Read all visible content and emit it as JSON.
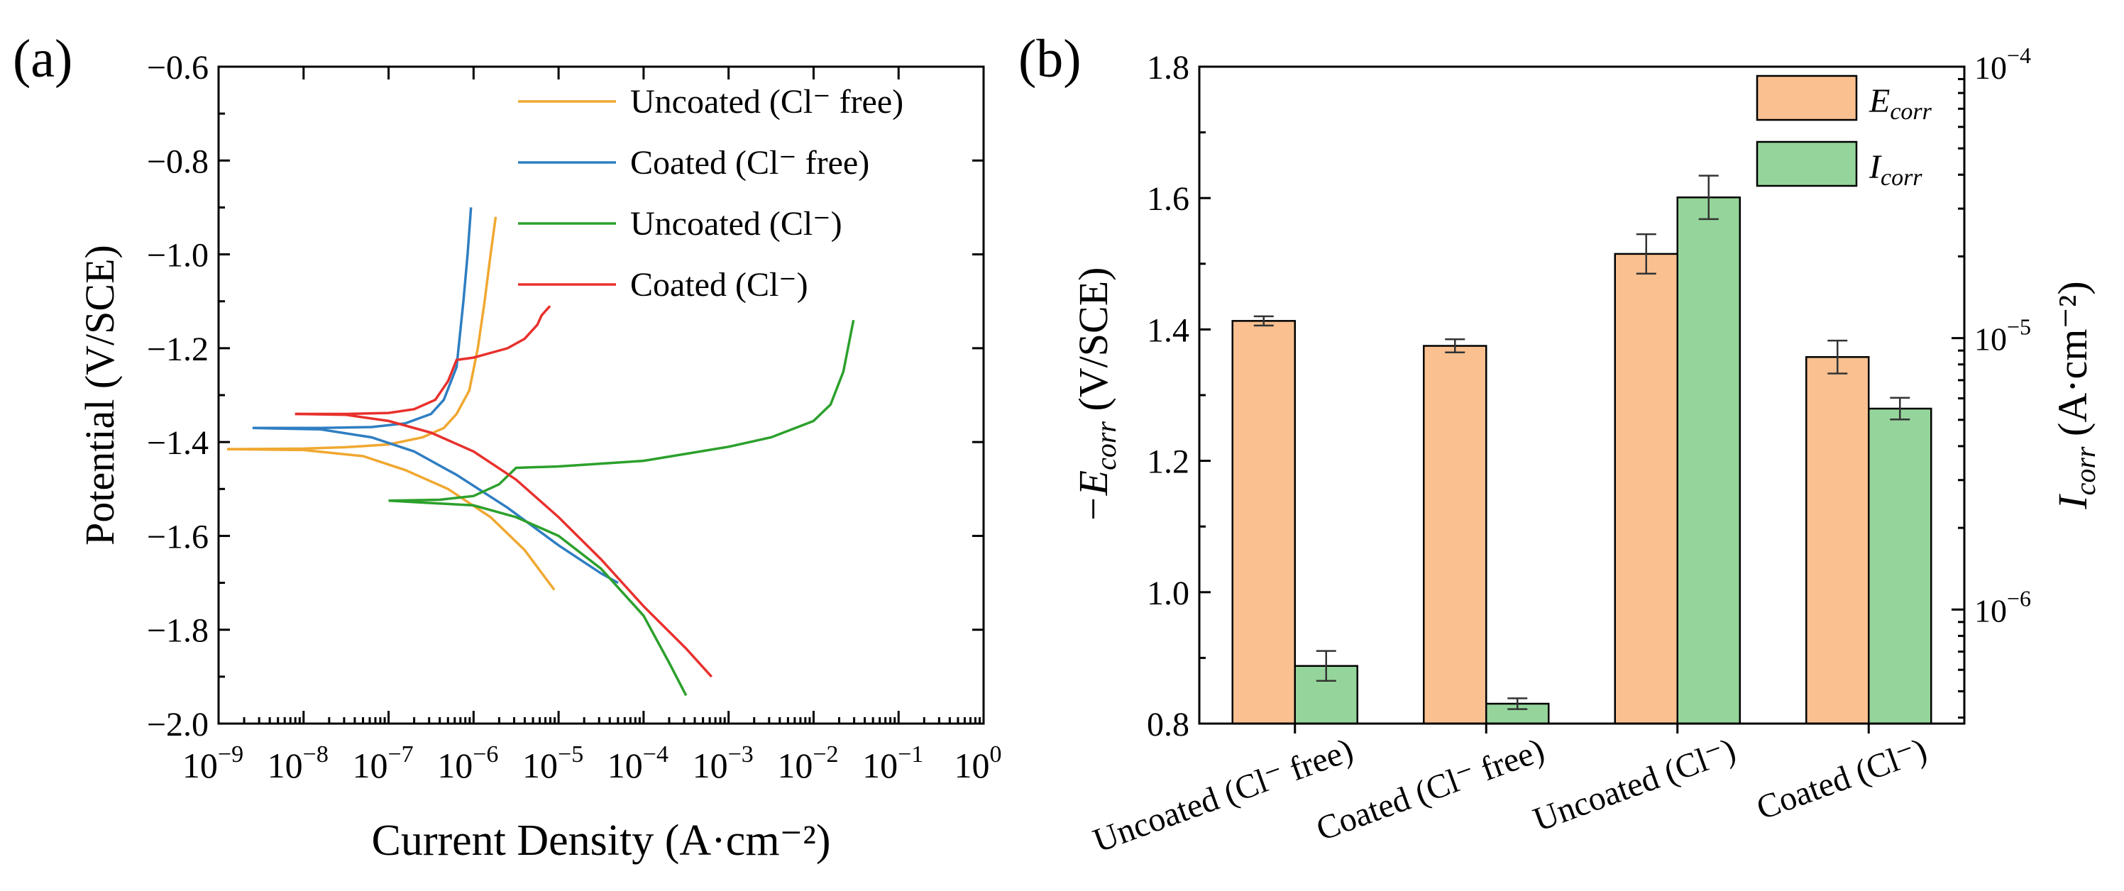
{
  "chart_data": [
    {
      "id": "a",
      "type": "line",
      "panel_label": "(a)",
      "xlabel": "Current Density (A·cm⁻²)",
      "ylabel": "Potential (V/SCE)",
      "xscale": "log",
      "xlim": [
        1e-09,
        1
      ],
      "ylim": [
        -2.0,
        -0.6
      ],
      "xticks": [
        {
          "exp": "-9",
          "label_base": "10",
          "label_exp": "−9"
        },
        {
          "exp": "-8",
          "label_base": "10",
          "label_exp": "−8"
        },
        {
          "exp": "-7",
          "label_base": "10",
          "label_exp": "−7"
        },
        {
          "exp": "-6",
          "label_base": "10",
          "label_exp": "−6"
        },
        {
          "exp": "-5",
          "label_base": "10",
          "label_exp": "−5"
        },
        {
          "exp": "-4",
          "label_base": "10",
          "label_exp": "−4"
        },
        {
          "exp": "-3",
          "label_base": "10",
          "label_exp": "−3"
        },
        {
          "exp": "-2",
          "label_base": "10",
          "label_exp": "−2"
        },
        {
          "exp": "-1",
          "label_base": "10",
          "label_exp": "−1"
        },
        {
          "exp": "0",
          "label_base": "10",
          "label_exp": "0"
        }
      ],
      "yticks": [
        {
          "value": -0.6,
          "label": "−0.6"
        },
        {
          "value": -0.8,
          "label": "−0.8"
        },
        {
          "value": -1.0,
          "label": "−1.0"
        },
        {
          "value": -1.2,
          "label": "−1.2"
        },
        {
          "value": -1.4,
          "label": "−1.4"
        },
        {
          "value": -1.6,
          "label": "−1.6"
        },
        {
          "value": -1.8,
          "label": "−1.8"
        },
        {
          "value": -2.0,
          "label": "−2.0"
        }
      ],
      "legend_position": "top-right",
      "series": [
        {
          "name": "Uncoated (Cl⁻ free)",
          "color": "#f0a830",
          "points": [
            [
              -8.9,
              -1.415
            ],
            [
              -8.0,
              -1.414
            ],
            [
              -7.5,
              -1.411
            ],
            [
              -7.0,
              -1.405
            ],
            [
              -6.6,
              -1.39
            ],
            [
              -6.35,
              -1.37
            ],
            [
              -6.2,
              -1.34
            ],
            [
              -6.05,
              -1.29
            ],
            [
              -5.95,
              -1.2
            ],
            [
              -5.87,
              -1.1
            ],
            [
              -5.8,
              -1.0
            ],
            [
              -5.74,
              -0.92
            ]
          ],
          "points_cathodic": [
            [
              -8.9,
              -1.415
            ],
            [
              -8.0,
              -1.417
            ],
            [
              -7.3,
              -1.43
            ],
            [
              -6.8,
              -1.46
            ],
            [
              -6.3,
              -1.5
            ],
            [
              -5.8,
              -1.56
            ],
            [
              -5.4,
              -1.63
            ],
            [
              -5.05,
              -1.715
            ]
          ]
        },
        {
          "name": "Coated (Cl⁻ free)",
          "color": "#2f7ec2",
          "points": [
            [
              -8.6,
              -1.37
            ],
            [
              -7.8,
              -1.37
            ],
            [
              -7.2,
              -1.368
            ],
            [
              -6.8,
              -1.36
            ],
            [
              -6.5,
              -1.34
            ],
            [
              -6.35,
              -1.31
            ],
            [
              -6.2,
              -1.24
            ],
            [
              -6.12,
              -1.1
            ],
            [
              -6.07,
              -1.0
            ],
            [
              -6.03,
              -0.9
            ]
          ],
          "points_cathodic": [
            [
              -8.6,
              -1.37
            ],
            [
              -7.8,
              -1.373
            ],
            [
              -7.2,
              -1.39
            ],
            [
              -6.7,
              -1.42
            ],
            [
              -6.2,
              -1.47
            ],
            [
              -5.6,
              -1.54
            ],
            [
              -5.0,
              -1.62
            ],
            [
              -4.5,
              -1.68
            ],
            [
              -4.3,
              -1.7
            ]
          ]
        },
        {
          "name": "Uncoated (Cl⁻)",
          "color": "#2ca02c",
          "points": [
            [
              -7.0,
              -1.525
            ],
            [
              -6.4,
              -1.523
            ],
            [
              -6.0,
              -1.515
            ],
            [
              -5.7,
              -1.49
            ],
            [
              -5.5,
              -1.455
            ],
            [
              -5.0,
              -1.452
            ],
            [
              -4.0,
              -1.44
            ],
            [
              -3.0,
              -1.41
            ],
            [
              -2.5,
              -1.39
            ],
            [
              -2.0,
              -1.355
            ],
            [
              -1.8,
              -1.32
            ],
            [
              -1.65,
              -1.25
            ],
            [
              -1.53,
              -1.14
            ]
          ],
          "points_cathodic": [
            [
              -7.0,
              -1.525
            ],
            [
              -6.5,
              -1.53
            ],
            [
              -6.0,
              -1.535
            ],
            [
              -5.5,
              -1.56
            ],
            [
              -5.0,
              -1.6
            ],
            [
              -4.5,
              -1.67
            ],
            [
              -4.0,
              -1.77
            ],
            [
              -3.7,
              -1.87
            ],
            [
              -3.5,
              -1.94
            ]
          ]
        },
        {
          "name": "Coated (Cl⁻)",
          "color": "#e8302c",
          "points": [
            [
              -8.1,
              -1.34
            ],
            [
              -7.5,
              -1.34
            ],
            [
              -7.0,
              -1.338
            ],
            [
              -6.7,
              -1.33
            ],
            [
              -6.45,
              -1.31
            ],
            [
              -6.3,
              -1.27
            ],
            [
              -6.2,
              -1.225
            ],
            [
              -6.0,
              -1.22
            ],
            [
              -5.8,
              -1.21
            ],
            [
              -5.6,
              -1.2
            ],
            [
              -5.4,
              -1.18
            ],
            [
              -5.25,
              -1.15
            ],
            [
              -5.2,
              -1.13
            ],
            [
              -5.15,
              -1.12
            ],
            [
              -5.1,
              -1.11
            ]
          ],
          "points_cathodic": [
            [
              -8.1,
              -1.34
            ],
            [
              -7.5,
              -1.342
            ],
            [
              -7.0,
              -1.355
            ],
            [
              -6.5,
              -1.38
            ],
            [
              -6.0,
              -1.42
            ],
            [
              -5.5,
              -1.48
            ],
            [
              -5.0,
              -1.56
            ],
            [
              -4.5,
              -1.65
            ],
            [
              -4.0,
              -1.75
            ],
            [
              -3.5,
              -1.84
            ],
            [
              -3.2,
              -1.9
            ]
          ]
        }
      ]
    },
    {
      "id": "b",
      "type": "bar",
      "panel_label": "(b)",
      "categories": [
        "Uncoated (Cl⁻ free)",
        "Coated (Cl⁻ free)",
        "Uncoated (Cl⁻)",
        "Coated (Cl⁻)"
      ],
      "ylabel_left": "−E",
      "ylabel_left_sub": "corr",
      "ylabel_left_unit": " (V/SCE)",
      "ylabel_right": "I",
      "ylabel_right_sub": "corr",
      "ylabel_right_unit": " (A·cm⁻²)",
      "ylim_left": [
        0.8,
        1.8
      ],
      "ylim_right_log10": [
        -6.42,
        -4.0
      ],
      "yticks_left": [
        {
          "value": 0.8,
          "label": "0.8"
        },
        {
          "value": 1.0,
          "label": "1.0"
        },
        {
          "value": 1.2,
          "label": "1.2"
        },
        {
          "value": 1.4,
          "label": "1.4"
        },
        {
          "value": 1.6,
          "label": "1.6"
        },
        {
          "value": 1.8,
          "label": "1.8"
        }
      ],
      "yticks_right": [
        {
          "exp": "-6",
          "label_base": "10",
          "label_exp": "−6"
        },
        {
          "exp": "-5",
          "label_base": "10",
          "label_exp": "−5"
        },
        {
          "exp": "-4",
          "label_base": "10",
          "label_exp": "−4"
        }
      ],
      "legend_position": "top-right",
      "series": [
        {
          "name": "E",
          "name_sub": "corr",
          "color": "#fac090",
          "axis": "left",
          "values": [
            1.413,
            1.375,
            1.515,
            1.358
          ],
          "errors": [
            0.007,
            0.01,
            0.03,
            0.025
          ]
        },
        {
          "name": "I",
          "name_sub": "corr",
          "color": "#95d59b",
          "axis": "right",
          "values": [
            6.2e-07,
            4.5e-07,
            3.3e-05,
            5.5e-06
          ],
          "errors_log10": [
            0.055,
            0.02,
            0.08,
            0.04
          ]
        }
      ]
    }
  ]
}
